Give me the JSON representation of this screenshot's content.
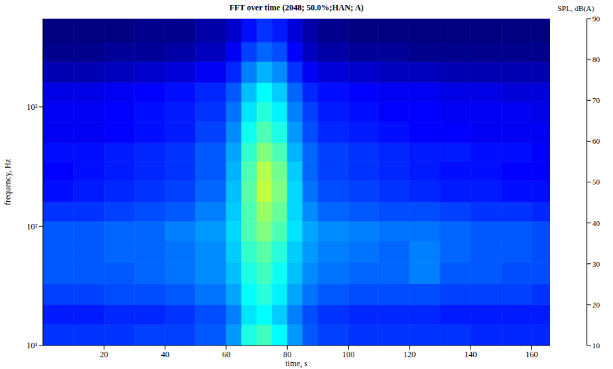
{
  "chart_data": {
    "type": "heatmap",
    "title": "FFT over time (2048; 50.0%;HAN; A)",
    "x_label": "time, s",
    "y_label": "frequency, Hz",
    "log": "y",
    "grid": false,
    "xlim": [
      0,
      166
    ],
    "xticks": [
      20,
      40,
      60,
      80,
      100,
      120,
      140,
      160
    ],
    "ylim": [
      10,
      5500
    ],
    "yticks": [
      {
        "value": 10,
        "label": "10¹"
      },
      {
        "value": 100,
        "label": "10²"
      },
      {
        "value": 1000,
        "label": "10³"
      }
    ],
    "time_bins": [
      0,
      10,
      20,
      30,
      40,
      50,
      60,
      65,
      70,
      75,
      80,
      85,
      90,
      100,
      110,
      120,
      130,
      140,
      150,
      160,
      166
    ],
    "frequency_bins": [
      10,
      15,
      22,
      33,
      50,
      75,
      110,
      160,
      240,
      350,
      500,
      750,
      1100,
      1600,
      2400,
      3500,
      5500
    ],
    "cells": [
      [
        24,
        24,
        24,
        25,
        25,
        27,
        32,
        42,
        45,
        40,
        32,
        27,
        25,
        24,
        24,
        24,
        24,
        23,
        23,
        23
      ],
      [
        22,
        22,
        23,
        23,
        24,
        26,
        30,
        38,
        40,
        36,
        30,
        26,
        24,
        23,
        23,
        23,
        22,
        22,
        22,
        22
      ],
      [
        25,
        25,
        26,
        26,
        27,
        29,
        33,
        40,
        43,
        39,
        33,
        29,
        27,
        26,
        26,
        26,
        25,
        25,
        25,
        24
      ],
      [
        27,
        27,
        27,
        28,
        29,
        31,
        35,
        42,
        45,
        41,
        35,
        31,
        29,
        28,
        28,
        30,
        27,
        27,
        26,
        26
      ],
      [
        27,
        27,
        28,
        28,
        29,
        31,
        36,
        44,
        47,
        43,
        36,
        32,
        30,
        29,
        28,
        30,
        28,
        27,
        27,
        26
      ],
      [
        27,
        27,
        28,
        28,
        30,
        32,
        37,
        46,
        50,
        46,
        38,
        33,
        31,
        30,
        29,
        29,
        28,
        27,
        27,
        26
      ],
      [
        24,
        24,
        25,
        26,
        27,
        30,
        36,
        46,
        52,
        48,
        37,
        31,
        28,
        27,
        26,
        26,
        25,
        24,
        24,
        23
      ],
      [
        21,
        22,
        23,
        24,
        25,
        28,
        35,
        47,
        55,
        50,
        37,
        29,
        26,
        25,
        24,
        23,
        22,
        22,
        21,
        21
      ],
      [
        20,
        21,
        22,
        23,
        24,
        27,
        34,
        46,
        54,
        49,
        36,
        28,
        25,
        24,
        23,
        22,
        21,
        21,
        20,
        20
      ],
      [
        21,
        21,
        22,
        23,
        24,
        27,
        33,
        44,
        50,
        46,
        34,
        28,
        25,
        24,
        23,
        22,
        22,
        21,
        21,
        20
      ],
      [
        19,
        19,
        20,
        21,
        22,
        25,
        31,
        41,
        46,
        42,
        32,
        26,
        23,
        22,
        21,
        20,
        20,
        19,
        19,
        19
      ],
      [
        19,
        19,
        20,
        21,
        22,
        24,
        29,
        38,
        43,
        39,
        30,
        25,
        22,
        21,
        20,
        20,
        19,
        19,
        19,
        18
      ],
      [
        18,
        18,
        19,
        20,
        21,
        23,
        27,
        35,
        40,
        36,
        28,
        23,
        21,
        20,
        19,
        19,
        18,
        18,
        17,
        17
      ],
      [
        14,
        14,
        15,
        16,
        17,
        19,
        23,
        30,
        34,
        31,
        24,
        19,
        17,
        16,
        15,
        15,
        14,
        14,
        14,
        14
      ],
      [
        11,
        11,
        12,
        12,
        13,
        15,
        19,
        25,
        28,
        26,
        20,
        15,
        13,
        12,
        12,
        11,
        11,
        11,
        11,
        11
      ],
      [
        10,
        10,
        10,
        11,
        11,
        13,
        16,
        21,
        24,
        22,
        17,
        13,
        11,
        10,
        10,
        10,
        10,
        10,
        10,
        10
      ]
    ],
    "colorbar": {
      "label": "SPL, dB(A)",
      "range": [
        10,
        90
      ],
      "ticks": [
        10,
        20,
        30,
        40,
        50,
        60,
        70,
        80,
        90
      ]
    }
  }
}
